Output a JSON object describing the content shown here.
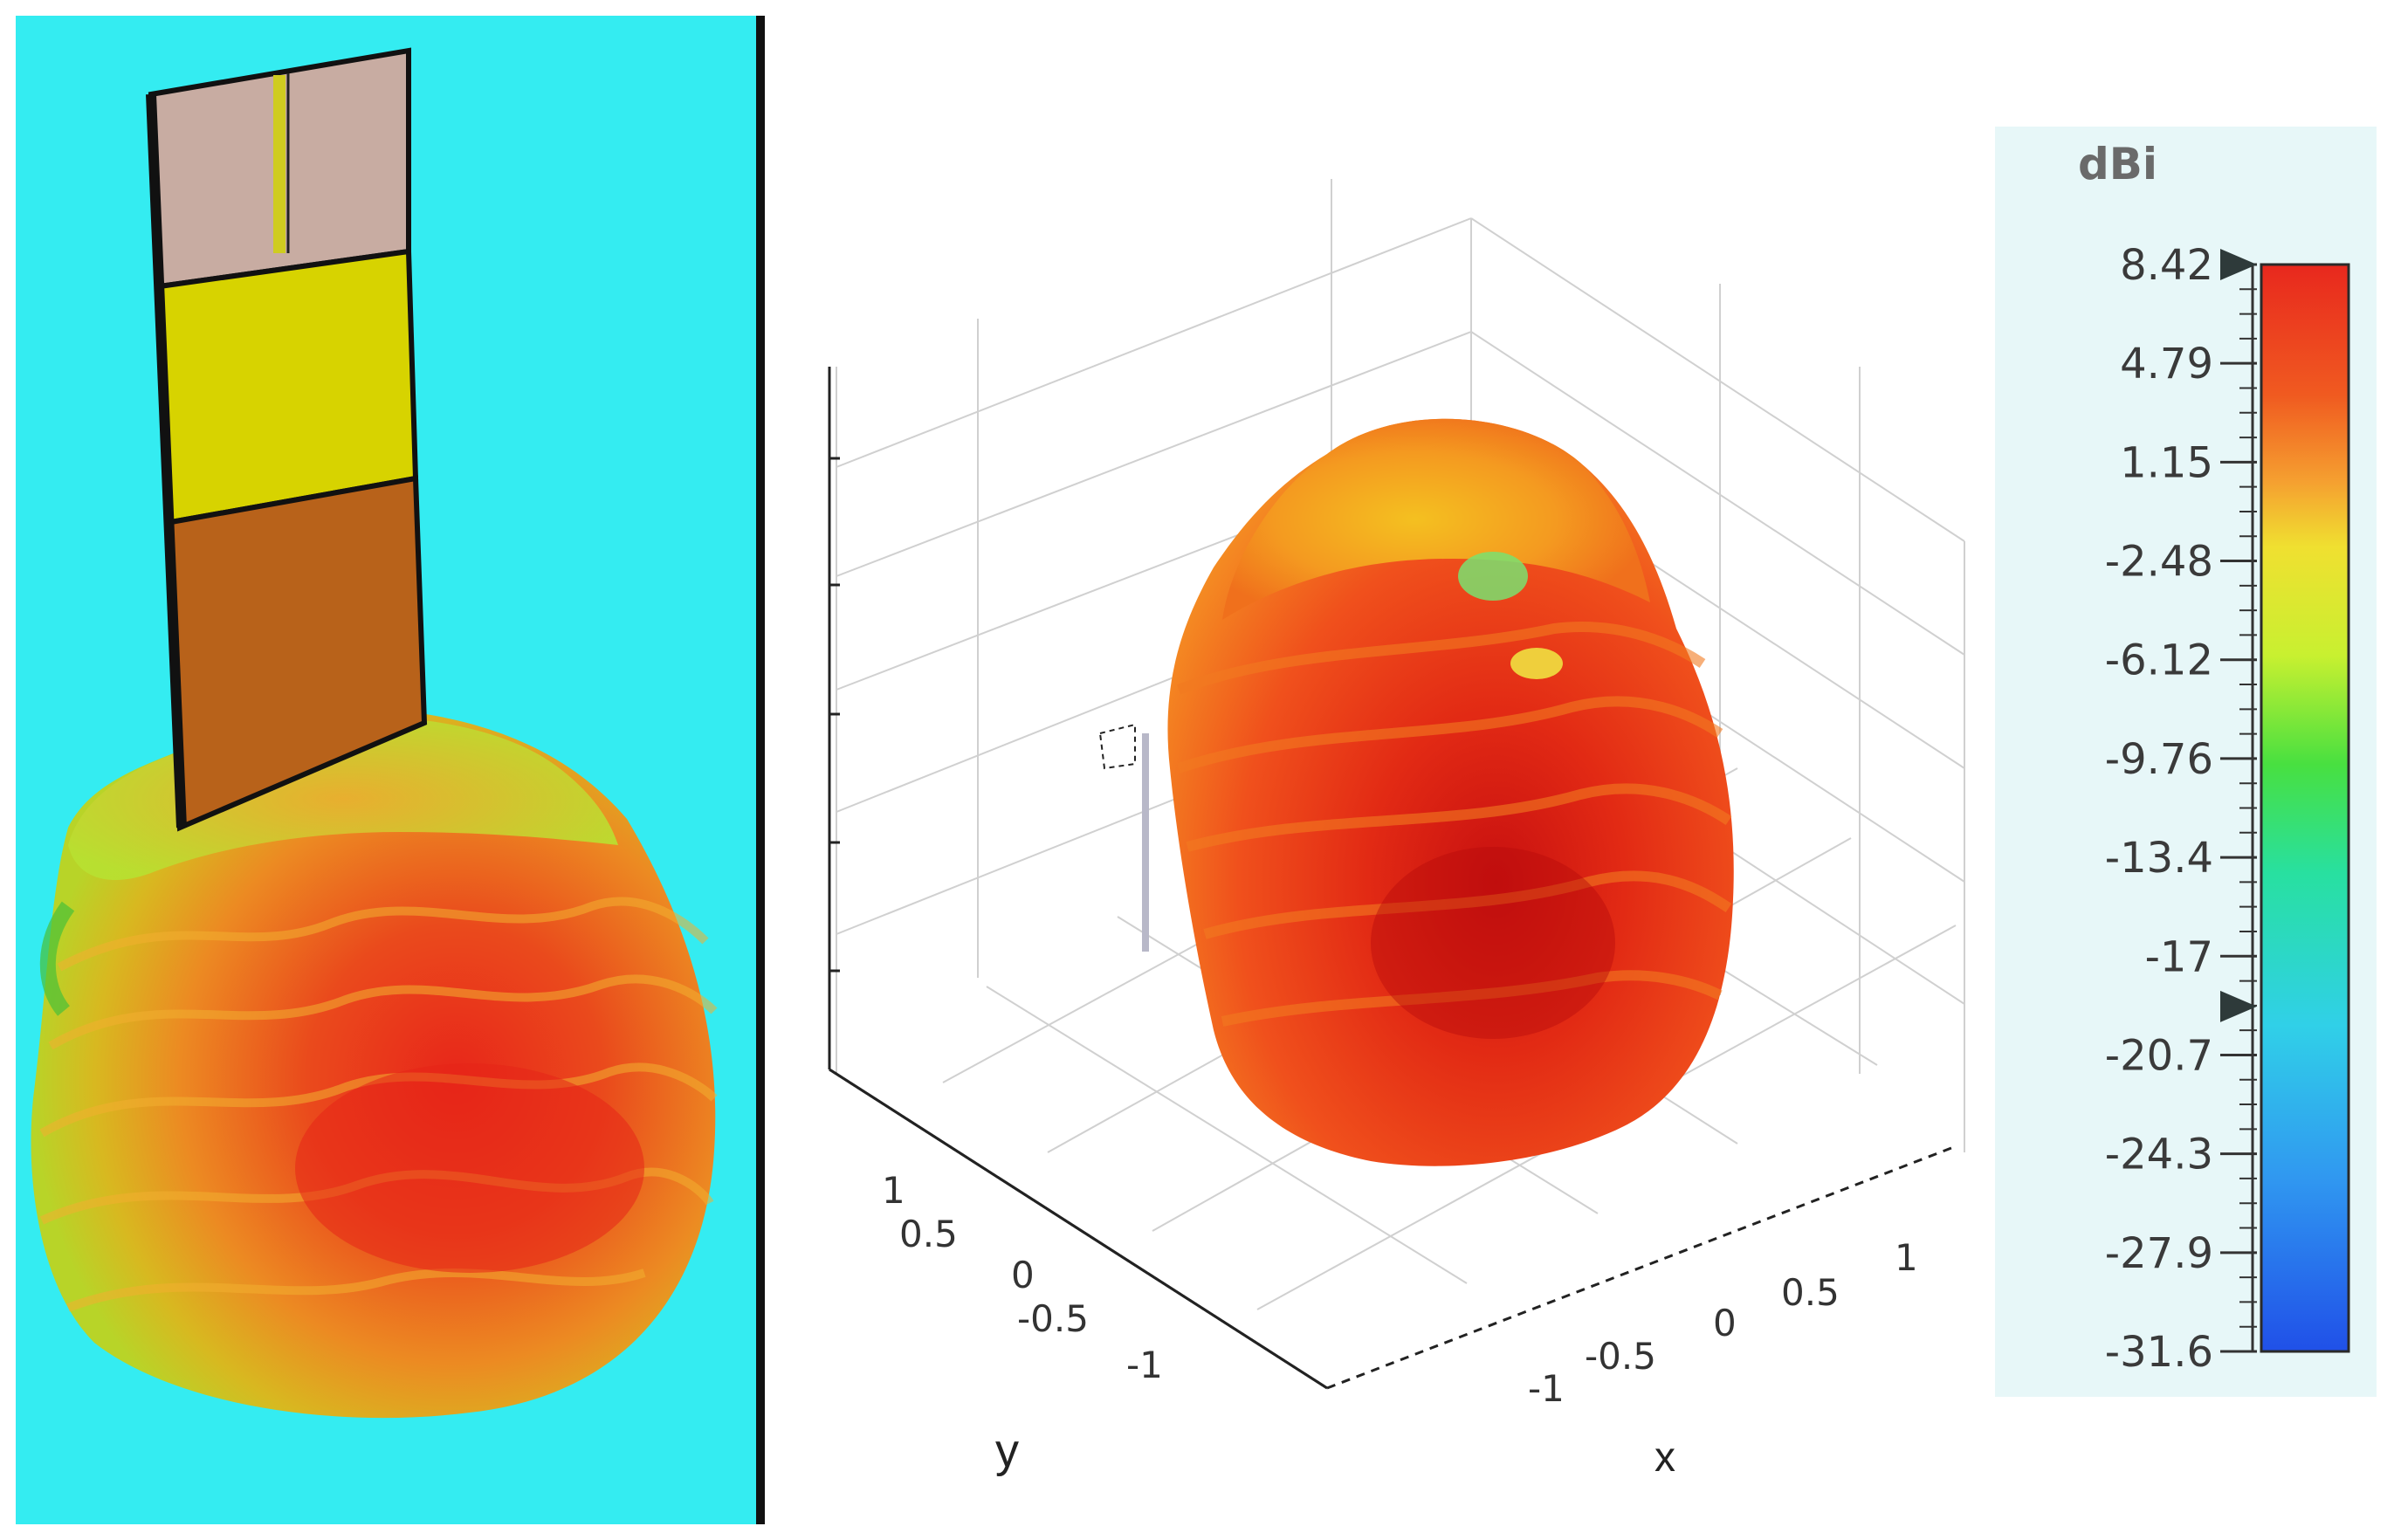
{
  "chart_data": [
    {
      "type": "3d-radiation-pattern",
      "panel": "antenna-model-with-pattern",
      "colors": {
        "background": "#34ecf1",
        "substrate_top": "#c8aca2",
        "conductor_yellow": "#d7d300",
        "ground_brown": "#b8621a",
        "pattern_high": "#e8321a",
        "pattern_mid": "#f0a020",
        "pattern_low": "#c8d820"
      }
    },
    {
      "type": "3d-surface",
      "panel": "radiation-pattern-plot",
      "xlabel": "x",
      "ylabel": "y",
      "x_ticks": [
        "-1",
        "-0.5",
        "0",
        "0.5",
        "1"
      ],
      "y_ticks": [
        "1",
        "0.5",
        "0",
        "-0.5",
        "-1"
      ],
      "xlim": [
        -1,
        1
      ],
      "ylim": [
        -1,
        1
      ],
      "grid": true
    },
    {
      "type": "colorbar",
      "unit": "dBi",
      "range": [
        -31.6,
        8.42
      ],
      "ticks": [
        "8.42",
        "4.79",
        "1.15",
        "-2.48",
        "-6.12",
        "-9.76",
        "-13.4",
        "-17",
        "-20.7",
        "-24.3",
        "-27.9",
        "-31.6"
      ],
      "markers": [
        8.42,
        -18.9
      ],
      "color_stops": [
        "#e8281e",
        "#f05a20",
        "#f5a030",
        "#f0e030",
        "#c8f030",
        "#48e040",
        "#28e0a0",
        "#30d0e8",
        "#3098f0",
        "#2050e8"
      ]
    }
  ]
}
